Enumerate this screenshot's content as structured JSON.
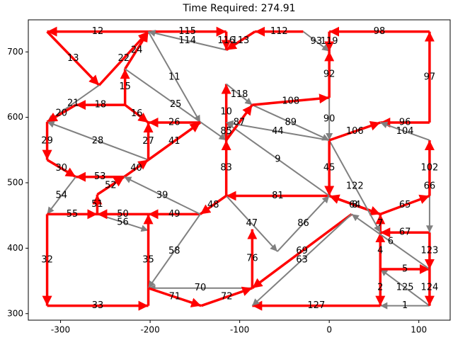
{
  "chart_data": {
    "type": "network",
    "title": "Time Required: 274.91",
    "xlim": [
      -336,
      135
    ],
    "ylim": [
      290,
      749
    ],
    "xticks": [
      -300,
      -200,
      -100,
      0,
      100
    ],
    "yticks": [
      300,
      400,
      500,
      600,
      700
    ],
    "edges": [
      {
        "label": "12",
        "color": "red",
        "x": [
          -202,
          -315
        ],
        "y": [
          731,
          731
        ]
      },
      {
        "label": "13",
        "color": "red",
        "x": [
          -315,
          -257
        ],
        "y": [
          731,
          649
        ]
      },
      {
        "label": "22",
        "color": "red",
        "x": [
          -257,
          -202
        ],
        "y": [
          649,
          731
        ]
      },
      {
        "label": "24",
        "color": "red",
        "x": [
          -228,
          -202
        ],
        "y": [
          674,
          731
        ]
      },
      {
        "label": "115",
        "color": "red",
        "x": [
          -202,
          -115
        ],
        "y": [
          731,
          731
        ]
      },
      {
        "label": "114",
        "color": "gray",
        "x": [
          -115,
          -202
        ],
        "y": [
          703,
          731
        ]
      },
      {
        "label": "11",
        "color": "gray",
        "x": [
          -202,
          -144
        ],
        "y": [
          731,
          592
        ]
      },
      {
        "label": "116",
        "color": "red",
        "x": [
          -115,
          -115
        ],
        "y": [
          731,
          703
        ]
      },
      {
        "label": "113",
        "color": "red",
        "x": [
          -83,
          -115
        ],
        "y": [
          731,
          703
        ]
      },
      {
        "label": "112",
        "color": "red",
        "x": [
          -29,
          -83
        ],
        "y": [
          731,
          731
        ]
      },
      {
        "label": "93",
        "color": "gray",
        "x": [
          -29,
          0
        ],
        "y": [
          731,
          701
        ]
      },
      {
        "label": "119",
        "color": "red",
        "x": [
          0,
          0
        ],
        "y": [
          731,
          701
        ]
      },
      {
        "label": "98",
        "color": "red",
        "x": [
          112,
          0
        ],
        "y": [
          731,
          731
        ]
      },
      {
        "label": "97",
        "color": "red",
        "x": [
          112,
          112
        ],
        "y": [
          592,
          731
        ]
      },
      {
        "label": "92",
        "color": "red",
        "x": [
          0,
          0
        ],
        "y": [
          630,
          701
        ]
      },
      {
        "label": "90",
        "color": "gray",
        "x": [
          0,
          0
        ],
        "y": [
          630,
          565
        ]
      },
      {
        "label": "15",
        "color": "red",
        "x": [
          -228,
          -228
        ],
        "y": [
          619,
          674
        ]
      },
      {
        "label": "21",
        "color": "gray",
        "x": [
          -257,
          -315
        ],
        "y": [
          649,
          593
        ]
      },
      {
        "label": "18",
        "color": "red",
        "x": [
          -228,
          -283
        ],
        "y": [
          619,
          619
        ]
      },
      {
        "label": "20",
        "color": "red",
        "x": [
          -283,
          -315
        ],
        "y": [
          619,
          593
        ]
      },
      {
        "label": "25",
        "color": "gray",
        "x": [
          -228,
          -115
        ],
        "y": [
          674,
          565
        ]
      },
      {
        "label": "16",
        "color": "red",
        "x": [
          -228,
          -202
        ],
        "y": [
          619,
          592
        ]
      },
      {
        "label": "27",
        "color": "red",
        "x": [
          -202,
          -202
        ],
        "y": [
          535,
          592
        ]
      },
      {
        "label": "26",
        "color": "red",
        "x": [
          -144,
          -202
        ],
        "y": [
          592,
          592
        ]
      },
      {
        "label": "41",
        "color": "red",
        "x": [
          -202,
          -144
        ],
        "y": [
          535,
          592
        ]
      },
      {
        "label": "28",
        "color": "gray",
        "x": [
          -202,
          -315
        ],
        "y": [
          535,
          593
        ]
      },
      {
        "label": "29",
        "color": "red",
        "x": [
          -315,
          -315
        ],
        "y": [
          593,
          535
        ]
      },
      {
        "label": "30",
        "color": "red",
        "x": [
          -315,
          -283
        ],
        "y": [
          535,
          509
        ]
      },
      {
        "label": "53",
        "color": "red",
        "x": [
          -229,
          -283
        ],
        "y": [
          509,
          509
        ]
      },
      {
        "label": "52",
        "color": "red",
        "x": [
          -259,
          -229
        ],
        "y": [
          482,
          509
        ]
      },
      {
        "label": "40",
        "color": "red",
        "x": [
          -229,
          -202
        ],
        "y": [
          509,
          535
        ]
      },
      {
        "label": "51",
        "color": "red",
        "x": [
          -259,
          -259
        ],
        "y": [
          452,
          482
        ]
      },
      {
        "label": "54",
        "color": "gray",
        "x": [
          -283,
          -315
        ],
        "y": [
          509,
          452
        ]
      },
      {
        "label": "55",
        "color": "red",
        "x": [
          -315,
          -259
        ],
        "y": [
          452,
          452
        ]
      },
      {
        "label": "56",
        "color": "gray",
        "x": [
          -259,
          -202
        ],
        "y": [
          452,
          427
        ]
      },
      {
        "label": "50",
        "color": "red",
        "x": [
          -202,
          -259
        ],
        "y": [
          452,
          452
        ]
      },
      {
        "label": "32",
        "color": "red",
        "x": [
          -315,
          -315
        ],
        "y": [
          452,
          312
        ]
      },
      {
        "label": "33",
        "color": "red",
        "x": [
          -315,
          -202
        ],
        "y": [
          312,
          312
        ]
      },
      {
        "label": "35",
        "color": "red",
        "x": [
          -202,
          -202
        ],
        "y": [
          312,
          452
        ]
      },
      {
        "label": "49",
        "color": "red",
        "x": [
          -144,
          -202
        ],
        "y": [
          452,
          452
        ]
      },
      {
        "label": "39",
        "color": "gray",
        "x": [
          -144,
          -229
        ],
        "y": [
          452,
          509
        ]
      },
      {
        "label": "58",
        "color": "gray",
        "x": [
          -144,
          -202
        ],
        "y": [
          452,
          339
        ]
      },
      {
        "label": "70",
        "color": "gray",
        "x": [
          -86,
          -202
        ],
        "y": [
          339,
          339
        ]
      },
      {
        "label": "71",
        "color": "red",
        "x": [
          -202,
          -143
        ],
        "y": [
          339,
          312
        ]
      },
      {
        "label": "72",
        "color": "red",
        "x": [
          -143,
          -86
        ],
        "y": [
          312,
          339
        ]
      },
      {
        "label": "76",
        "color": "red",
        "x": [
          -86,
          -86
        ],
        "y": [
          339,
          429
        ]
      },
      {
        "label": "127",
        "color": "red",
        "x": [
          57,
          -86
        ],
        "y": [
          312,
          312
        ]
      },
      {
        "label": "1",
        "color": "gray",
        "x": [
          112,
          57
        ],
        "y": [
          312,
          312
        ]
      },
      {
        "label": "125",
        "color": "gray",
        "x": [
          112,
          57
        ],
        "y": [
          312,
          368
        ]
      },
      {
        "label": "124",
        "color": "red",
        "x": [
          112,
          112
        ],
        "y": [
          368,
          312
        ]
      },
      {
        "label": "5",
        "color": "red",
        "x": [
          57,
          112
        ],
        "y": [
          368,
          368
        ]
      },
      {
        "label": "2",
        "color": "red",
        "x": [
          57,
          57
        ],
        "y": [
          368,
          312
        ]
      },
      {
        "label": "4",
        "color": "red",
        "x": [
          57,
          57
        ],
        "y": [
          368,
          424
        ]
      },
      {
        "label": "6",
        "color": "gray",
        "x": [
          112,
          25
        ],
        "y": [
          368,
          452
        ]
      },
      {
        "label": "123",
        "color": "red",
        "x": [
          112,
          112
        ],
        "y": [
          424,
          368
        ]
      },
      {
        "label": "67",
        "color": "red",
        "x": [
          112,
          57
        ],
        "y": [
          424,
          424
        ]
      },
      {
        "label": "66",
        "color": "gray",
        "x": [
          112,
          112
        ],
        "y": [
          565,
          424
        ]
      },
      {
        "label": "65",
        "color": "red",
        "x": [
          57,
          112
        ],
        "y": [
          452,
          480
        ]
      },
      {
        "label": "102",
        "color": "red",
        "x": [
          112,
          112
        ],
        "y": [
          480,
          565
        ]
      },
      {
        "label": "7",
        "color": "red",
        "x": [
          57,
          57
        ],
        "y": [
          424,
          452
        ]
      },
      {
        "label": "64",
        "color": "red",
        "x": [
          0,
          57
        ],
        "y": [
          480,
          452
        ]
      },
      {
        "label": "8",
        "color": "red",
        "x": [
          57,
          0
        ],
        "y": [
          452,
          480
        ]
      },
      {
        "label": "122",
        "color": "gray",
        "x": [
          0,
          57
        ],
        "y": [
          565,
          424
        ]
      },
      {
        "label": "45",
        "color": "red",
        "x": [
          0,
          0
        ],
        "y": [
          565,
          480
        ]
      },
      {
        "label": "81",
        "color": "red",
        "x": [
          0,
          -115
        ],
        "y": [
          480,
          480
        ]
      },
      {
        "label": "9",
        "color": "gray",
        "x": [
          0,
          -115
        ],
        "y": [
          480,
          592
        ]
      },
      {
        "label": "69",
        "color": "red",
        "x": [
          25,
          -86
        ],
        "y": [
          452,
          339
        ]
      },
      {
        "label": "63",
        "color": "gray",
        "x": [
          25,
          -86
        ],
        "y": [
          452,
          312
        ]
      },
      {
        "label": "86",
        "color": "gray",
        "x": [
          -58,
          0
        ],
        "y": [
          395,
          480
        ]
      },
      {
        "label": "47",
        "color": "gray",
        "x": [
          -115,
          -58
        ],
        "y": [
          480,
          395
        ]
      },
      {
        "label": "48",
        "color": "red",
        "x": [
          -115,
          -144
        ],
        "y": [
          480,
          452
        ]
      },
      {
        "label": "83",
        "color": "red",
        "x": [
          -115,
          -115
        ],
        "y": [
          480,
          565
        ]
      },
      {
        "label": "85",
        "color": "gray",
        "x": [
          -115,
          -115
        ],
        "y": [
          592,
          565
        ]
      },
      {
        "label": "10",
        "color": "red",
        "x": [
          -115,
          -115
        ],
        "y": [
          565,
          651
        ]
      },
      {
        "label": "118",
        "color": "gray",
        "x": [
          -115,
          -86
        ],
        "y": [
          651,
          619
        ]
      },
      {
        "label": "87",
        "color": "red",
        "x": [
          -115,
          -86
        ],
        "y": [
          565,
          619
        ]
      },
      {
        "label": "44",
        "color": "gray",
        "x": [
          0,
          -115
        ],
        "y": [
          565,
          592
        ]
      },
      {
        "label": "89",
        "color": "gray",
        "x": [
          -86,
          0
        ],
        "y": [
          619,
          565
        ]
      },
      {
        "label": "108",
        "color": "red",
        "x": [
          -86,
          0
        ],
        "y": [
          619,
          630
        ]
      },
      {
        "label": "106",
        "color": "red",
        "x": [
          0,
          57
        ],
        "y": [
          565,
          592
        ]
      },
      {
        "label": "96",
        "color": "red",
        "x": [
          112,
          57
        ],
        "y": [
          592,
          592
        ]
      },
      {
        "label": "104",
        "color": "gray",
        "x": [
          112,
          57
        ],
        "y": [
          565,
          592
        ]
      }
    ]
  }
}
